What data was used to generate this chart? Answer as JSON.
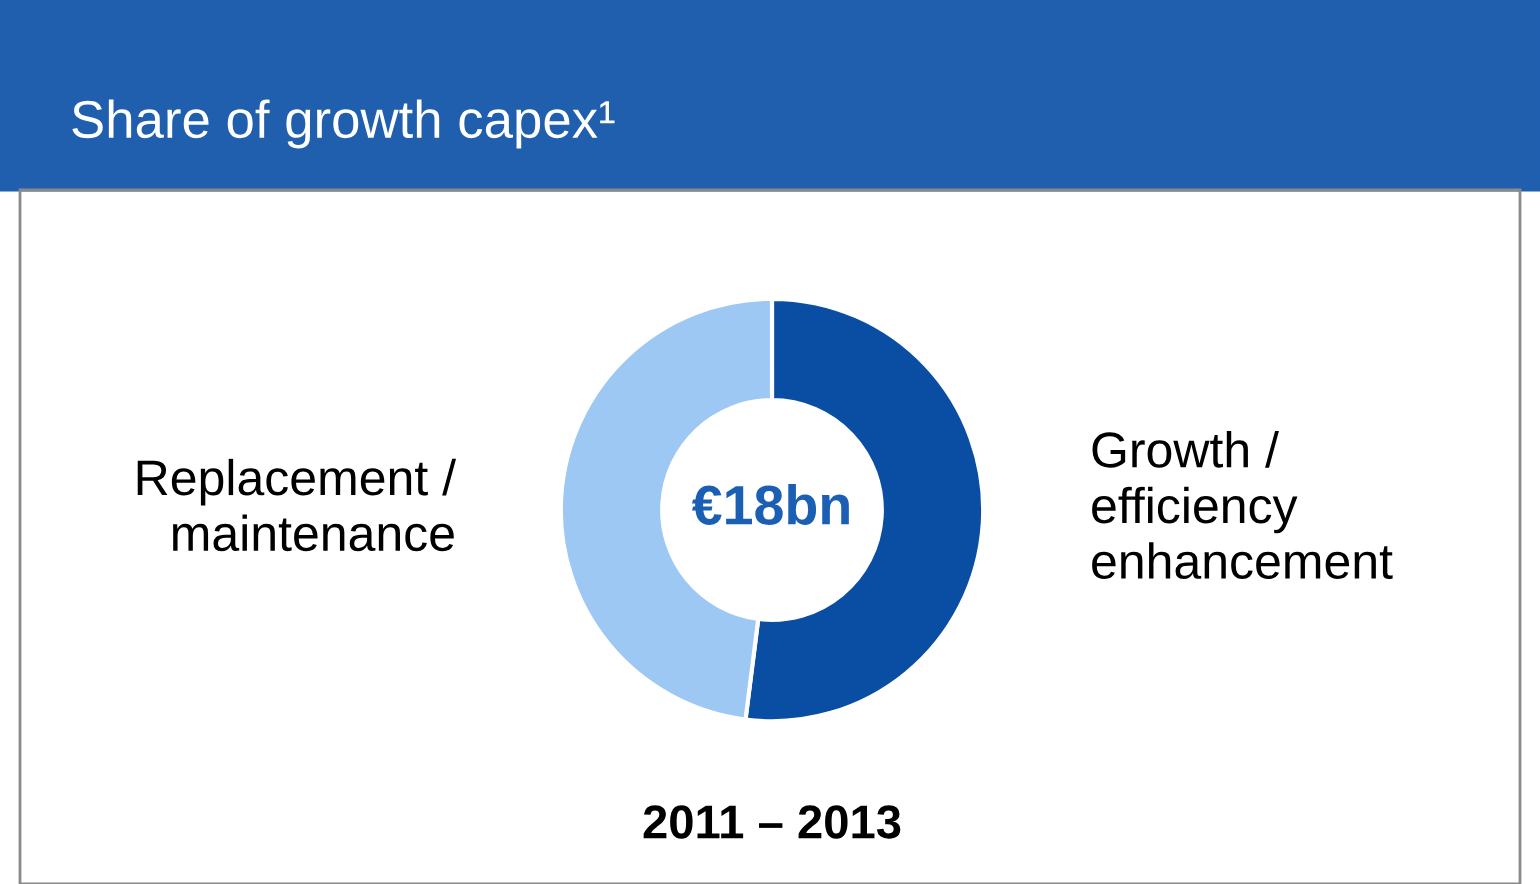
{
  "chart_data": {
    "type": "donut",
    "title": "Share of growth capex¹",
    "categories": [
      "Growth / efficiency enhancement",
      "Replacement / maintenance"
    ],
    "values": [
      52,
      48
    ],
    "colors": [
      "#0a4ea3",
      "#9dc8f3"
    ],
    "annotations": [
      "€18bn"
    ],
    "xlabel": "2011 – 2013"
  }
}
